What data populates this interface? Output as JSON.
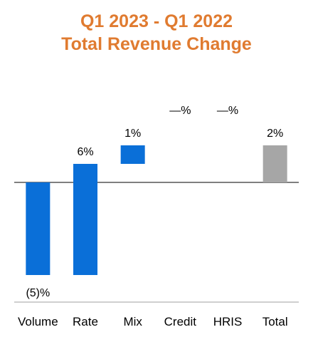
{
  "colors": {
    "title": "#E07B30",
    "bar": "#0A6FD8",
    "total": "#A6A6A6",
    "zero_line": "#555555",
    "base_line": "#BFBFBF",
    "text": "#000000"
  },
  "chart_data": {
    "type": "bar",
    "subtype": "waterfall",
    "title": "Q1 2023 - Q1 2022",
    "subtitle": "Total Revenue Change",
    "xlabel": "",
    "ylabel": "",
    "grid": false,
    "legend": "none",
    "unit": "%",
    "categories": [
      "Volume",
      "Rate",
      "Mix",
      "Credit",
      "HRIS",
      "Total"
    ],
    "values": [
      -5,
      6,
      1,
      0,
      0,
      2
    ],
    "data_labels": [
      "(5)%",
      "6%",
      "1%",
      "—%",
      "—%",
      "2%"
    ],
    "is_total": [
      false,
      false,
      false,
      false,
      false,
      true
    ],
    "ylim": [
      -6.5,
      3.2
    ]
  }
}
